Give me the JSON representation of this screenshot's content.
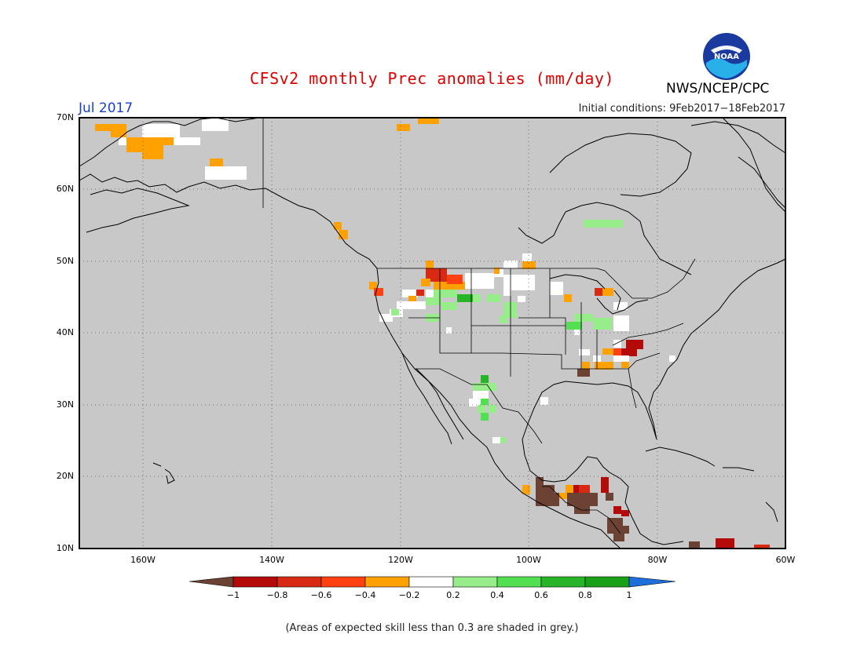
{
  "title": "CFSv2 monthly Prec anomalies (mm/day)",
  "forecast_month": "Jul 2017",
  "initial_conditions": "Initial conditions: 9Feb2017−18Feb2017",
  "agency": "NWS/NCEP/CPC",
  "logo_text": "NOAA",
  "note": "(Areas of expected skill less than 0.3 are shaded in grey.)",
  "map": {
    "lon_range": [
      -170,
      -60
    ],
    "lat_range": [
      10,
      70
    ],
    "lat_ticks": [
      "70N",
      "60N",
      "50N",
      "40N",
      "30N",
      "20N",
      "10N"
    ],
    "lon_ticks": [
      "160W",
      "140W",
      "120W",
      "100W",
      "80W",
      "60W"
    ],
    "colors": {
      "background": "#c8c8c8",
      "coast": "#000000"
    }
  },
  "colorbar": {
    "labels": [
      "−1",
      "−0.8",
      "−0.6",
      "−0.4",
      "−0.2",
      "0.2",
      "0.4",
      "0.6",
      "0.8",
      "1"
    ],
    "colors": [
      "#6b4234",
      "#b40a0a",
      "#d82a12",
      "#ff4010",
      "#ffa100",
      "#ffffff",
      "#96ed8a",
      "#52e052",
      "#28b428",
      "#18a018",
      "#1e6edc"
    ]
  }
}
